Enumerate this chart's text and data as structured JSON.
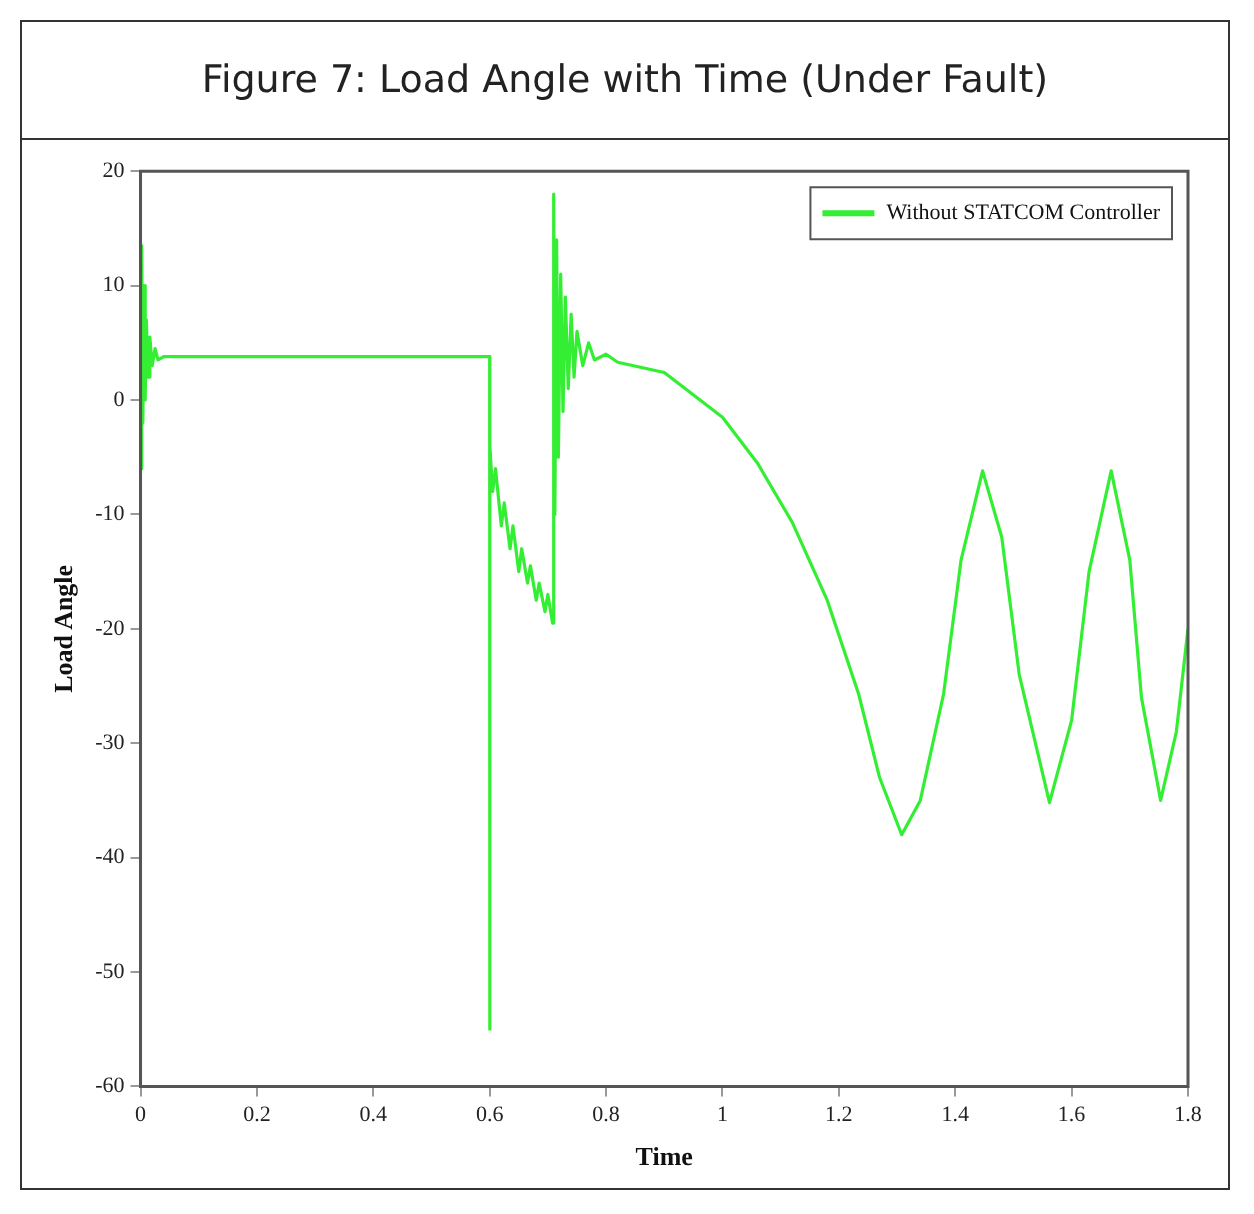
{
  "chart_data": {
    "type": "line",
    "title": "Figure 7: Load Angle with Time (Under Fault)",
    "xlabel": "Time",
    "ylabel": "Load Angle",
    "xlim": [
      0,
      1.8
    ],
    "xticks": [
      0,
      0.2,
      0.4,
      0.6,
      0.8,
      1,
      1.2,
      1.4,
      1.6,
      1.8
    ],
    "ylim": [
      -60,
      20
    ],
    "yticks": [
      -60,
      -50,
      -40,
      -30,
      -20,
      -10,
      0,
      10,
      20
    ],
    "grid": false,
    "legend": "top right",
    "marker": "none",
    "line_style": "solid",
    "series": [
      {
        "name": "Without STATCOM Controller",
        "color": "#33ee33",
        "x": [
          0,
          0.002,
          0.004,
          0.006,
          0.008,
          0.01,
          0.013,
          0.016,
          0.02,
          0.025,
          0.03,
          0.04,
          0.6,
          0.6,
          0.6005,
          0.605,
          0.61,
          0.62,
          0.625,
          0.635,
          0.64,
          0.65,
          0.655,
          0.665,
          0.67,
          0.68,
          0.685,
          0.695,
          0.7,
          0.708,
          0.71,
          0.712,
          0.715,
          0.718,
          0.722,
          0.726,
          0.73,
          0.735,
          0.74,
          0.745,
          0.75,
          0.76,
          0.77,
          0.78,
          0.8,
          0.82,
          0.9,
          1,
          1.06,
          1.12,
          1.18,
          1.234,
          1.27,
          1.308,
          1.34,
          1.38,
          1.41,
          1.447,
          1.48,
          1.51,
          1.562,
          1.6,
          1.63,
          1.668,
          1.7,
          1.72,
          1.753,
          1.78,
          1.8
        ],
        "values": [
          -6,
          13.5,
          -2,
          10,
          0,
          7,
          2,
          5.5,
          3,
          4.5,
          3.5,
          3.8,
          3.8,
          -55,
          -4,
          -8,
          -6,
          -11,
          -9,
          -13,
          -11,
          -15,
          -13,
          -16,
          -14.5,
          -17.5,
          -16,
          -18.5,
          -17,
          -19.5,
          18,
          -10,
          14,
          -5,
          11,
          -1,
          9,
          1,
          7.5,
          2,
          6,
          3,
          5,
          3.5,
          4,
          3.3,
          2.4,
          -1.5,
          -5.5,
          -10.7,
          -17.5,
          -25.7,
          -33,
          -38,
          -35,
          -25.7,
          -14,
          -6.2,
          -12,
          -24,
          -35.2,
          -28,
          -15,
          -6.2,
          -14,
          -26,
          -35,
          -29,
          -20
        ]
      }
    ]
  }
}
